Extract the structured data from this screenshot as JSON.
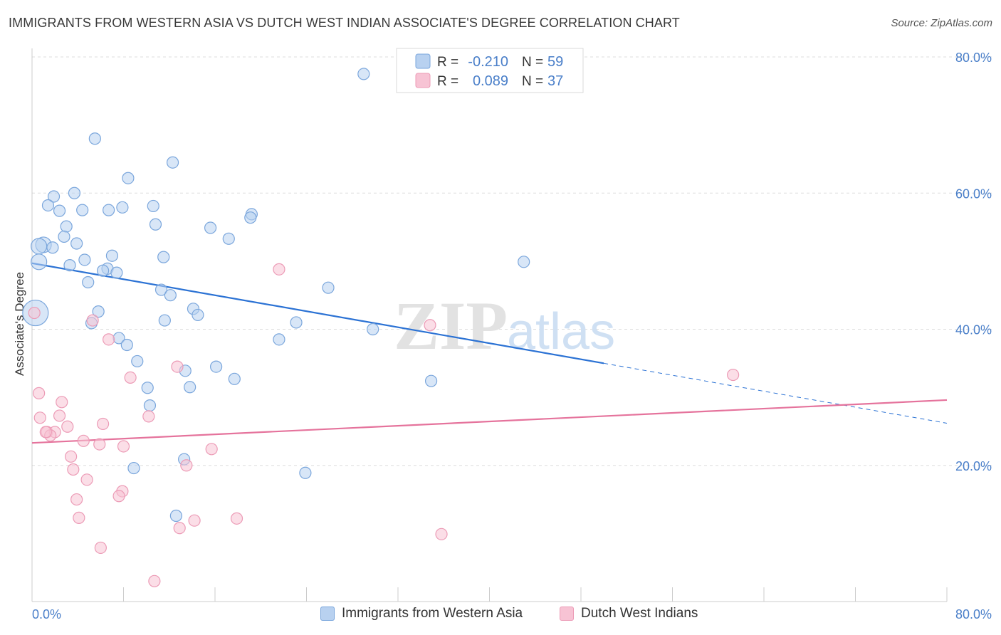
{
  "title": "IMMIGRANTS FROM WESTERN ASIA VS DUTCH WEST INDIAN ASSOCIATE'S DEGREE CORRELATION CHART",
  "source": "Source: ZipAtlas.com",
  "watermark": {
    "zip": "ZIP",
    "atlas": "atlas"
  },
  "colors": {
    "blue_fill": "#b8d1f0",
    "blue_stroke": "#7aa6dc",
    "blue_line": "#2b72d4",
    "pink_fill": "#f7c3d4",
    "pink_stroke": "#ec9bb6",
    "pink_line": "#e5739c",
    "axis_label": "#4a7fc9",
    "grid": "#dddddd"
  },
  "legend": {
    "rows": [
      {
        "r_label": "R =",
        "r_value": "-0.210",
        "n_label": "N =",
        "n_value": "59",
        "color": "blue"
      },
      {
        "r_label": "R =",
        "r_value": "0.089",
        "n_label": "N =",
        "n_value": "37",
        "color": "pink"
      }
    ]
  },
  "chart_data": {
    "type": "scatter",
    "title": "IMMIGRANTS FROM WESTERN ASIA VS DUTCH WEST INDIAN ASSOCIATE'S DEGREE CORRELATION CHART",
    "xlabel": "",
    "ylabel": "Associate's Degree",
    "xlim": [
      0,
      80
    ],
    "ylim": [
      0,
      80
    ],
    "x_tick_labels": [
      "0.0%",
      "80.0%"
    ],
    "y_tick_labels": [
      "20.0%",
      "40.0%",
      "60.0%",
      "80.0%"
    ],
    "y_ticks": [
      20,
      40,
      60,
      80
    ],
    "grid": true,
    "legend_position": "top-center",
    "series": [
      {
        "name": "Immigrants from Western Asia",
        "color": "blue",
        "points": [
          [
            29.0,
            77.5
          ],
          [
            5.5,
            68.0
          ],
          [
            12.3,
            64.5
          ],
          [
            8.4,
            62.2
          ],
          [
            3.7,
            60.0
          ],
          [
            1.9,
            59.5
          ],
          [
            1.4,
            58.2
          ],
          [
            7.9,
            57.9
          ],
          [
            10.6,
            58.1
          ],
          [
            2.4,
            57.4
          ],
          [
            4.4,
            57.5
          ],
          [
            6.7,
            57.5
          ],
          [
            19.2,
            56.9
          ],
          [
            19.1,
            56.4
          ],
          [
            10.8,
            55.4
          ],
          [
            15.6,
            54.9
          ],
          [
            3.0,
            55.1
          ],
          [
            17.2,
            53.3
          ],
          [
            2.8,
            53.6
          ],
          [
            1.0,
            52.4
          ],
          [
            0.6,
            52.2
          ],
          [
            1.8,
            52.0
          ],
          [
            3.9,
            52.6
          ],
          [
            7.0,
            50.8
          ],
          [
            11.5,
            50.6
          ],
          [
            0.6,
            49.9
          ],
          [
            4.6,
            50.2
          ],
          [
            3.3,
            49.4
          ],
          [
            43.0,
            49.9
          ],
          [
            6.6,
            48.9
          ],
          [
            6.2,
            48.6
          ],
          [
            7.4,
            48.3
          ],
          [
            4.9,
            46.9
          ],
          [
            25.9,
            46.1
          ],
          [
            11.3,
            45.8
          ],
          [
            12.1,
            45.0
          ],
          [
            0.3,
            42.4
          ],
          [
            5.8,
            42.6
          ],
          [
            14.1,
            43.0
          ],
          [
            14.5,
            42.1
          ],
          [
            11.6,
            41.3
          ],
          [
            5.2,
            40.9
          ],
          [
            23.1,
            41.0
          ],
          [
            29.8,
            40.0
          ],
          [
            21.6,
            38.5
          ],
          [
            7.6,
            38.7
          ],
          [
            8.3,
            37.7
          ],
          [
            9.2,
            35.3
          ],
          [
            16.1,
            34.5
          ],
          [
            13.4,
            33.9
          ],
          [
            17.7,
            32.7
          ],
          [
            34.9,
            32.4
          ],
          [
            10.1,
            31.4
          ],
          [
            13.8,
            31.5
          ],
          [
            10.3,
            28.8
          ],
          [
            8.9,
            19.6
          ],
          [
            13.3,
            20.9
          ],
          [
            23.9,
            18.9
          ],
          [
            12.6,
            12.6
          ]
        ]
      },
      {
        "name": "Dutch West Indians",
        "color": "pink",
        "points": [
          [
            21.6,
            48.8
          ],
          [
            34.8,
            40.6
          ],
          [
            5.3,
            41.3
          ],
          [
            6.7,
            38.5
          ],
          [
            0.2,
            42.4
          ],
          [
            12.7,
            34.5
          ],
          [
            8.6,
            32.9
          ],
          [
            61.3,
            33.3
          ],
          [
            0.6,
            30.6
          ],
          [
            2.6,
            29.3
          ],
          [
            0.7,
            27.0
          ],
          [
            2.4,
            27.3
          ],
          [
            10.2,
            27.2
          ],
          [
            6.2,
            26.1
          ],
          [
            3.1,
            25.7
          ],
          [
            1.3,
            24.9
          ],
          [
            2.0,
            24.9
          ],
          [
            1.6,
            24.4
          ],
          [
            4.5,
            23.6
          ],
          [
            5.9,
            23.1
          ],
          [
            8.0,
            22.8
          ],
          [
            15.7,
            22.4
          ],
          [
            3.4,
            21.3
          ],
          [
            13.5,
            20.0
          ],
          [
            3.6,
            19.4
          ],
          [
            4.8,
            17.9
          ],
          [
            7.9,
            16.2
          ],
          [
            7.6,
            15.5
          ],
          [
            3.9,
            15.0
          ],
          [
            4.1,
            12.3
          ],
          [
            17.9,
            12.2
          ],
          [
            14.2,
            11.9
          ],
          [
            12.9,
            10.8
          ],
          [
            35.8,
            9.9
          ],
          [
            6.0,
            7.9
          ],
          [
            10.7,
            3.0
          ],
          [
            1.2,
            24.9
          ]
        ]
      }
    ],
    "trend_lines": [
      {
        "series": "Immigrants from Western Asia",
        "x_start": 0,
        "y_start": 49.7,
        "x_solid_end": 50,
        "y_solid_end": 35.0,
        "x_end": 80,
        "y_end": 26.2,
        "dashed_after_solid_end": true
      },
      {
        "series": "Dutch West Indians",
        "x_start": 0,
        "y_start": 23.3,
        "x_end": 80,
        "y_end": 29.6
      }
    ]
  },
  "bottom_legend": {
    "items": [
      {
        "label": "Immigrants from Western Asia",
        "color": "blue"
      },
      {
        "label": "Dutch West Indians",
        "color": "pink"
      }
    ]
  }
}
